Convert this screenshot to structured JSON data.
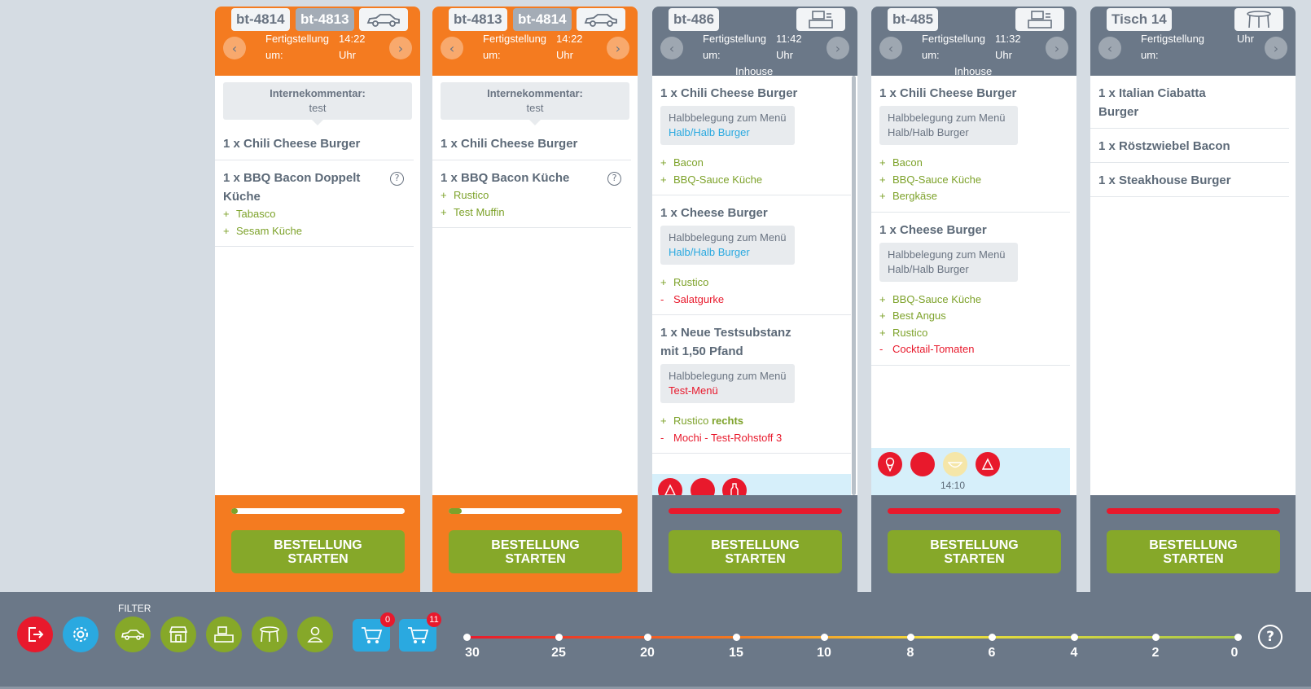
{
  "orders": [
    {
      "tag1": "bt-4814",
      "tag2": "bt-4813",
      "ready_label": "Fertigstellung um:",
      "time": "14:22 Uhr",
      "comment_label": "Internekommentar:",
      "comment": "test",
      "items": [
        {
          "title": "1 x Chili Cheese Burger"
        },
        {
          "title": "1 x BBQ Bacon Doppelt Küche",
          "mods": [
            "Tabasco",
            "Sesam Küche"
          ]
        }
      ],
      "button": "BESTELLUNG STARTEN"
    },
    {
      "tag1": "bt-4813",
      "tag2": "bt-4814",
      "ready_label": "Fertigstellung um:",
      "time": "14:22 Uhr",
      "comment_label": "Internekommentar:",
      "comment": "test",
      "items": [
        {
          "title": "1 x Chili Cheese Burger"
        },
        {
          "title": "1 x BBQ Bacon Küche",
          "mods": [
            "Rustico",
            "Test Muffin"
          ]
        }
      ],
      "button": "BESTELLUNG STARTEN"
    },
    {
      "tag1": "bt-486",
      "ready_label": "Fertigstellung um:",
      "time": "11:42 Uhr",
      "mode": "Inhouse",
      "items": [
        {
          "title": "1 x Chili Cheese Burger",
          "note": "Halbbelegung zum Menü",
          "note_hl": "Halb/Halb Burger",
          "mods": [
            "Bacon",
            "BBQ-Sauce Küche"
          ]
        },
        {
          "title": "1 x Cheese Burger",
          "note": "Halbbelegung zum Menü",
          "note_hl": "Halb/Halb Burger",
          "mods": [
            "Rustico"
          ],
          "removed": [
            "Salatgurke"
          ]
        },
        {
          "title": "1 x Neue Testsubstanz mit 1,50 Pfand",
          "note": "Halbbelegung zum Menü",
          "note_hl": "Test-Menü",
          "mods": [
            "Rustico"
          ],
          "mod_suffix": "rechts",
          "removed": [
            "Mochi - Test-Rohstoff 3"
          ]
        }
      ],
      "button": "BESTELLUNG STARTEN"
    },
    {
      "tag1": "bt-485",
      "ready_label": "Fertigstellung um:",
      "time": "11:32 Uhr",
      "mode": "Inhouse",
      "items": [
        {
          "title": "1 x Chili Cheese Burger",
          "note": "Halbbelegung zum Menü Halb/Halb Burger",
          "mods": [
            "Bacon",
            "BBQ-Sauce Küche",
            "Bergkäse"
          ]
        },
        {
          "title": "1 x Cheese Burger",
          "note": "Halbbelegung zum Menü Halb/Halb Burger",
          "mods": [
            "BBQ-Sauce Küche",
            "Best Angus",
            "Rustico"
          ],
          "removed": [
            "Cocktail-Tomaten"
          ]
        }
      ],
      "strip_time": "14:10",
      "button": "BESTELLUNG STARTEN"
    },
    {
      "tag1": "Tisch 14",
      "ready_label": "Fertigstellung um:",
      "time": "Uhr",
      "items": [
        {
          "title": "1 x Italian Ciabatta Burger"
        },
        {
          "title": "1 x Röstzwiebel Bacon"
        },
        {
          "title": "1 x Steakhouse Burger"
        }
      ],
      "button": "BESTELLUNG STARTEN"
    }
  ],
  "bottom": {
    "filter_label": "FILTER",
    "cart1_count": "0",
    "cart2_count": "11",
    "timeline": [
      "30",
      "25",
      "20",
      "15",
      "10",
      "8",
      "6",
      "4",
      "2",
      "0"
    ],
    "help": "?"
  },
  "colors": {
    "orange": "#f47b20",
    "slate": "#6b7888",
    "green": "#86a829",
    "red": "#e8192c",
    "blue": "#2aa9e0"
  }
}
